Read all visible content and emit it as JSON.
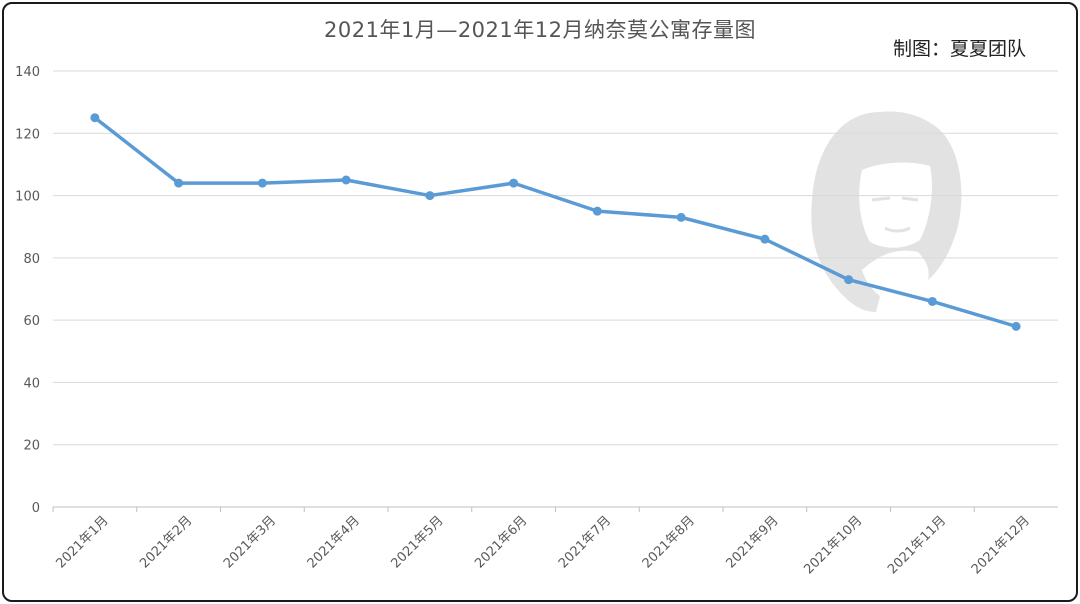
{
  "chart_data": {
    "type": "line",
    "title": "2021年1月—2021年12月纳奈莫公寓存量图",
    "credit": "制图：夏夏团队",
    "categories": [
      "2021年1月",
      "2021年2月",
      "2021年3月",
      "2021年4月",
      "2021年5月",
      "2021年6月",
      "2021年7月",
      "2021年8月",
      "2021年9月",
      "2021年10月",
      "2021年11月",
      "2021年12月"
    ],
    "series": [
      {
        "values": [
          125,
          104,
          104,
          105,
          100,
          104,
          95,
          93,
          86,
          73,
          66,
          58
        ]
      }
    ],
    "ylim": [
      0,
      140
    ],
    "yticks": [
      0,
      20,
      40,
      60,
      80,
      100,
      120,
      140
    ],
    "grid": true,
    "legend": "none",
    "line_color": "#5b9bd5",
    "watermark": "portrait-silhouette"
  }
}
